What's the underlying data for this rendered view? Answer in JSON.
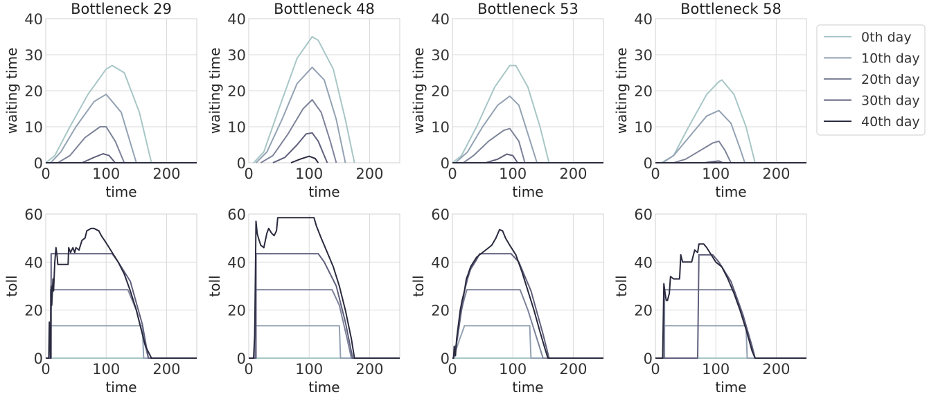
{
  "chart_data": {
    "type": "line",
    "grid": true,
    "legend": {
      "placement": "right of top row",
      "entries": [
        "0th day",
        "10th day",
        "20th day",
        "30th day",
        "40th day"
      ],
      "colors": [
        "#a8c6c6",
        "#93a2b3",
        "#7d8399",
        "#5f5f7c",
        "#2a2a3f"
      ]
    },
    "rows": [
      {
        "ylabel": "waiting time",
        "xlabel": "time",
        "xlim": [
          0,
          250
        ],
        "ylim": [
          0,
          40
        ],
        "xticks": [
          "0",
          "100",
          "200"
        ],
        "yticks": [
          "0",
          "10",
          "20",
          "30",
          "40"
        ]
      },
      {
        "ylabel": "toll",
        "xlabel": "time",
        "xlim": [
          0,
          250
        ],
        "ylim": [
          0,
          60
        ],
        "xticks": [
          "0",
          "100",
          "200"
        ],
        "yticks": [
          "0",
          "20",
          "40",
          "60"
        ]
      }
    ],
    "panels": [
      {
        "title": "Bottleneck 29",
        "waiting_time": [
          {
            "name": "0th day",
            "x": [
              0,
              15,
              40,
              70,
              100,
              110,
              130,
              155,
              175
            ],
            "y": [
              0,
              2,
              10,
              19,
              26,
              27,
              25,
              14,
              0
            ]
          },
          {
            "name": "10th day",
            "x": [
              8,
              25,
              50,
              80,
              100,
              125,
              150
            ],
            "y": [
              0,
              3,
              10,
              17,
              19,
              14,
              0
            ]
          },
          {
            "name": "20th day",
            "x": [
              20,
              40,
              65,
              90,
              100,
              115,
              130
            ],
            "y": [
              0,
              2,
              7,
              10,
              10,
              6,
              0
            ]
          },
          {
            "name": "30th day",
            "x": [
              60,
              80,
              95,
              105,
              115
            ],
            "y": [
              0,
              1.5,
              2.5,
              2,
              0
            ]
          },
          {
            "name": "40th day",
            "x": [
              0,
              250
            ],
            "y": [
              0,
              0
            ]
          }
        ],
        "toll": [
          {
            "name": "0th day",
            "x": [
              0,
              250
            ],
            "y": [
              0,
              0
            ]
          },
          {
            "name": "10th day",
            "x": [
              0,
              7,
              7,
              160,
              162,
              250
            ],
            "y": [
              0,
              0,
              13.5,
              13.5,
              0,
              0
            ]
          },
          {
            "name": "20th day",
            "x": [
              0,
              8,
              8,
              136,
              150,
              163,
              170,
              250
            ],
            "y": [
              0,
              0,
              28.5,
              28.5,
              20,
              7,
              0,
              0
            ]
          },
          {
            "name": "30th day",
            "x": [
              0,
              9,
              9,
              110,
              120,
              140,
              160,
              170,
              250
            ],
            "y": [
              0,
              0,
              43.5,
              43.5,
              40,
              32,
              14,
              0,
              0
            ]
          },
          {
            "name": "40th day",
            "x": [
              0,
              5,
              6,
              8,
              9,
              10,
              12,
              13,
              15,
              17,
              19,
              20,
              25,
              30,
              37,
              38,
              41,
              45,
              48,
              50,
              55,
              60,
              65,
              68,
              75,
              80,
              88,
              92,
              100,
              110,
              120,
              130,
              140,
              150,
              160,
              165,
              175,
              250
            ],
            "y": [
              0,
              0,
              15,
              0,
              30,
              22,
              33,
              28,
              40,
              46,
              42,
              39,
              39,
              39,
              39,
              46,
              44,
              46,
              44,
              46,
              45,
              49,
              50,
              53,
              54,
              54,
              53,
              51,
              48,
              44,
              40,
              35,
              28,
              20,
              10,
              5,
              0,
              0
            ]
          }
        ]
      },
      {
        "title": "Bottleneck 48",
        "waiting_time": [
          {
            "name": "0th day",
            "x": [
              8,
              25,
              50,
              80,
              105,
              115,
              140,
              160,
              175
            ],
            "y": [
              0,
              3,
              15,
              29,
              35,
              34,
              26,
              12,
              0
            ]
          },
          {
            "name": "10th day",
            "x": [
              12,
              30,
              55,
              80,
              105,
              125,
              145,
              160
            ],
            "y": [
              0,
              3,
              12,
              22,
              26.5,
              23,
              12,
              0
            ]
          },
          {
            "name": "20th day",
            "x": [
              20,
              40,
              65,
              90,
              105,
              120,
              135,
              145
            ],
            "y": [
              0,
              2,
              8,
              15,
              17.5,
              14,
              6,
              0
            ]
          },
          {
            "name": "30th day",
            "x": [
              40,
              60,
              80,
              95,
              105,
              115,
              125,
              130
            ],
            "y": [
              0,
              1.5,
              5,
              8,
              8.3,
              6,
              2,
              0
            ]
          },
          {
            "name": "40th day",
            "x": [
              70,
              85,
              100,
              110,
              115
            ],
            "y": [
              0,
              1,
              1.8,
              1.2,
              0
            ]
          }
        ],
        "toll": [
          {
            "name": "0th day",
            "x": [
              0,
              250
            ],
            "y": [
              0,
              0
            ]
          },
          {
            "name": "10th day",
            "x": [
              0,
              10,
              10,
              150,
              152,
              250
            ],
            "y": [
              0,
              0,
              13.5,
              13.5,
              0,
              0
            ]
          },
          {
            "name": "20th day",
            "x": [
              0,
              11,
              11,
              138,
              150,
              163,
              170,
              250
            ],
            "y": [
              0,
              0,
              28.5,
              28.5,
              22,
              8,
              0,
              0
            ]
          },
          {
            "name": "30th day",
            "x": [
              0,
              12,
              12,
              115,
              125,
              145,
              160,
              172,
              250
            ],
            "y": [
              0,
              0,
              43.5,
              43.5,
              40,
              30,
              15,
              0,
              0
            ]
          },
          {
            "name": "40th day",
            "x": [
              0,
              8,
              10,
              12,
              14,
              16,
              20,
              25,
              30,
              33,
              38,
              42,
              46,
              48,
              52,
              60,
              80,
              108,
              112,
              120,
              130,
              140,
              150,
              160,
              170,
              175,
              250
            ],
            "y": [
              0,
              0,
              10,
              57,
              52,
              50,
              47,
              46,
              52,
              54,
              52,
              51,
              53,
              58.5,
              58.5,
              58.5,
              58.5,
              58.5,
              55,
              50,
              44,
              38,
              30,
              20,
              8,
              0,
              0
            ]
          }
        ]
      },
      {
        "title": "Bottleneck 53",
        "waiting_time": [
          {
            "name": "0th day",
            "x": [
              0,
              15,
              40,
              70,
              95,
              105,
              125,
              145,
              160
            ],
            "y": [
              0,
              2,
              10,
              21,
              27,
              27,
              21,
              10,
              0
            ]
          },
          {
            "name": "10th day",
            "x": [
              5,
              25,
              50,
              75,
              95,
              110,
              125,
              140
            ],
            "y": [
              0,
              3,
              10,
              16,
              18.5,
              16,
              8,
              0
            ]
          },
          {
            "name": "20th day",
            "x": [
              18,
              35,
              60,
              85,
              95,
              110,
              120
            ],
            "y": [
              0,
              2,
              6,
              9,
              9.5,
              6,
              0
            ]
          },
          {
            "name": "30th day",
            "x": [
              55,
              75,
              90,
              100,
              108
            ],
            "y": [
              0,
              1,
              2.4,
              2,
              0
            ]
          },
          {
            "name": "40th day",
            "x": [
              0,
              250
            ],
            "y": [
              0,
              0
            ]
          }
        ],
        "toll": [
          {
            "name": "0th day",
            "x": [
              0,
              250
            ],
            "y": [
              0,
              0
            ]
          },
          {
            "name": "10th day",
            "x": [
              0,
              2,
              5,
              8,
              12,
              15,
              18,
              20,
              128,
              130,
              250
            ],
            "y": [
              0,
              0,
              3,
              5,
              8,
              10,
              12,
              13.5,
              13.5,
              0,
              0
            ]
          },
          {
            "name": "20th day",
            "x": [
              0,
              2,
              8,
              12,
              15,
              20,
              24,
              112,
              125,
              140,
              150,
              250
            ],
            "y": [
              0,
              0,
              8,
              15,
              20,
              25,
              28.5,
              28.5,
              20,
              8,
              0,
              0
            ]
          },
          {
            "name": "30th day",
            "x": [
              0,
              2,
              8,
              12,
              16,
              20,
              25,
              30,
              40,
              45,
              97,
              110,
              130,
              150,
              160,
              250
            ],
            "y": [
              0,
              0,
              8,
              15,
              22,
              28,
              33,
              37,
              41,
              43.5,
              43.5,
              40,
              28,
              10,
              0,
              0
            ]
          },
          {
            "name": "40th day",
            "x": [
              0,
              2,
              3,
              5,
              7,
              10,
              13,
              16,
              20,
              23,
              26,
              30,
              35,
              40,
              45,
              55,
              65,
              72,
              78,
              83,
              88,
              95,
              105,
              115,
              125,
              135,
              145,
              152,
              158,
              250
            ],
            "y": [
              0,
              0,
              5,
              1,
              8,
              14,
              20,
              24,
              28,
              33,
              35,
              38,
              40,
              42,
              43,
              45,
              47,
              50,
              53.5,
              53,
              50,
              47,
              43,
              36,
              28,
              20,
              11,
              5,
              0,
              0
            ]
          }
        ]
      },
      {
        "title": "Bottleneck 58",
        "waiting_time": [
          {
            "name": "0th day",
            "x": [
              10,
              30,
              55,
              85,
              105,
              110,
              130,
              150,
              165
            ],
            "y": [
              0,
              2,
              10,
              19,
              22.5,
              23,
              19,
              10,
              0
            ]
          },
          {
            "name": "10th day",
            "x": [
              12,
              30,
              55,
              85,
              105,
              125,
              140,
              148
            ],
            "y": [
              0,
              2,
              7,
              13,
              14.5,
              11,
              4,
              0
            ]
          },
          {
            "name": "20th day",
            "x": [
              30,
              50,
              75,
              95,
              105,
              115,
              125
            ],
            "y": [
              0,
              1,
              3.5,
              5.5,
              6,
              3.5,
              0
            ]
          },
          {
            "name": "30th day",
            "x": [
              80,
              95,
              105,
              112
            ],
            "y": [
              0,
              0.3,
              0.5,
              0
            ]
          },
          {
            "name": "40th day",
            "x": [
              0,
              250
            ],
            "y": [
              0,
              0
            ]
          }
        ],
        "toll": [
          {
            "name": "0th day",
            "x": [
              0,
              250
            ],
            "y": [
              0,
              0
            ]
          },
          {
            "name": "10th day",
            "x": [
              0,
              14,
              14,
              150,
              152,
              250
            ],
            "y": [
              0,
              0,
              13.5,
              13.5,
              0,
              0
            ]
          },
          {
            "name": "20th day",
            "x": [
              0,
              15,
              15,
              130,
              145,
              158,
              165,
              250
            ],
            "y": [
              0,
              0,
              28.5,
              28.5,
              18,
              6,
              0,
              0
            ]
          },
          {
            "name": "30th day",
            "x": [
              0,
              70,
              72,
              95,
              105,
              125,
              145,
              160,
              165,
              250
            ],
            "y": [
              0,
              0,
              43,
              43,
              40,
              32,
              18,
              5,
              0,
              0
            ]
          },
          {
            "name": "40th day",
            "x": [
              0,
              12,
              14,
              16,
              18,
              20,
              23,
              25,
              30,
              40,
              42,
              45,
              48,
              55,
              60,
              65,
              70,
              72,
              80,
              85,
              90,
              95,
              100,
              110,
              120,
              130,
              140,
              150,
              160,
              165,
              250
            ],
            "y": [
              0,
              0,
              31,
              27,
              24,
              24,
              27,
              34,
              33,
              33,
              43,
              40,
              40,
              40,
              40,
              45,
              44,
              47.5,
              47.5,
              46,
              44,
              42,
              40,
              38,
              33,
              27,
              20,
              12,
              3,
              0,
              0
            ]
          }
        ]
      }
    ]
  }
}
